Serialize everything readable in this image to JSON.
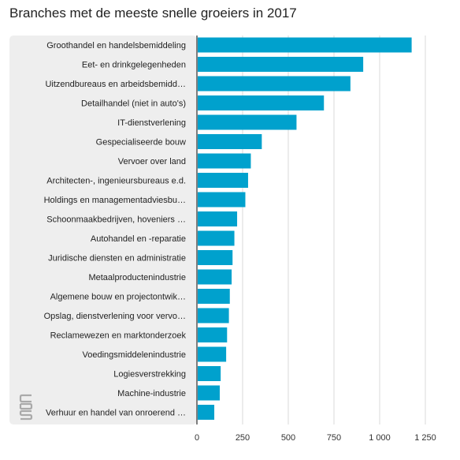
{
  "chart_data": {
    "type": "bar",
    "orientation": "horizontal",
    "title": "Branches met de meeste snelle groeiers in 2017",
    "categories": [
      "Groothandel en handelsbemiddeling",
      "Eet- en drinkgelegenheden",
      "Uitzendbureaus en arbeidsbemidd…",
      "Detailhandel (niet in auto's)",
      "IT-dienstverlening",
      "Gespecialiseerde bouw",
      "Vervoer over land",
      "Architecten-, ingenieursbureaus e.d.",
      "Holdings en managementadviesbu…",
      "Schoonmaakbedrijven, hoveniers …",
      "Autohandel en -reparatie",
      "Juridische diensten en administratie",
      "Metaalproductenindustrie",
      "Algemene bouw en projectontwik…",
      "Opslag, dienstverlening voor vervo…",
      "Reclamewezen en marktonderzoek",
      "Voedingsmiddelenindustrie",
      "Logiesverstrekking",
      "Machine-industrie",
      "Verhuur en handel van onroerend …"
    ],
    "values": [
      1175,
      910,
      840,
      695,
      545,
      355,
      295,
      280,
      265,
      220,
      205,
      195,
      190,
      180,
      175,
      165,
      160,
      130,
      125,
      95
    ],
    "xlim": [
      0,
      1250
    ],
    "xticks": [
      0,
      250,
      500,
      750,
      1000,
      1250
    ],
    "xtick_labels": [
      "0",
      "250",
      "500",
      "750",
      "1 000",
      "1 250"
    ],
    "xlabel": "",
    "ylabel": "",
    "grid": true,
    "legend": "none",
    "bar_color": "#00a1cd",
    "label_panel_color": "#eeeeee",
    "gridline_color": "#d9d9d9",
    "axis_color": "#555555"
  },
  "logo": {
    "icon": "cbs-logo-icon",
    "color": "#aaaaaa"
  }
}
